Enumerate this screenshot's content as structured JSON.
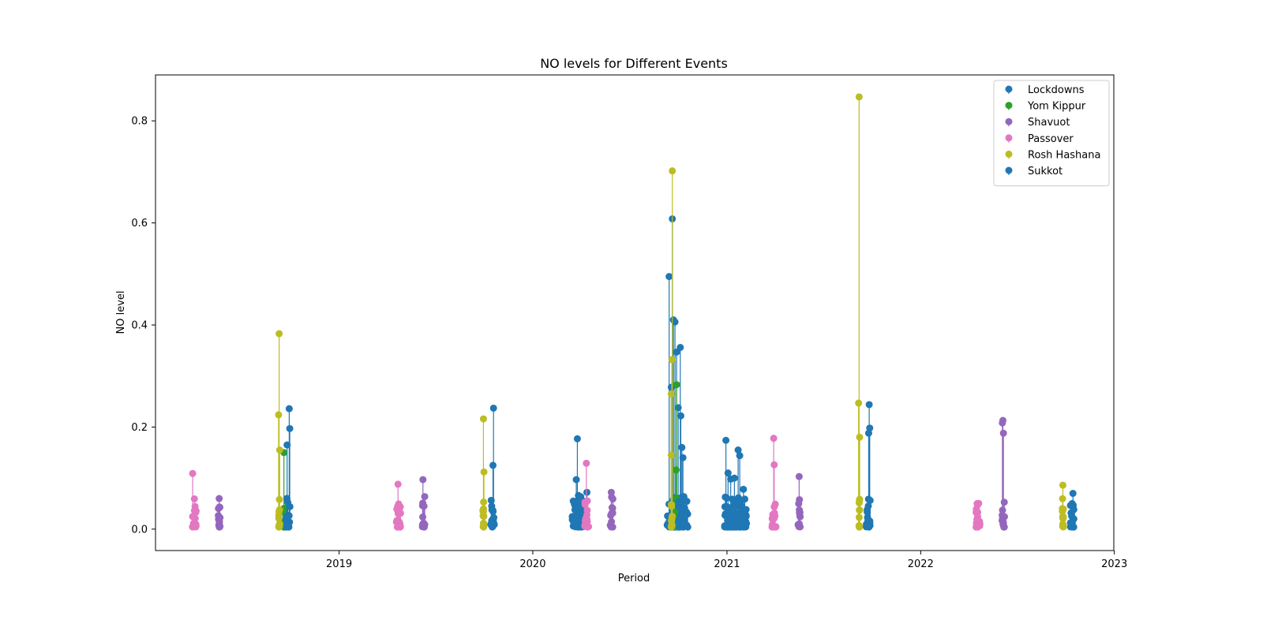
{
  "chart_data": {
    "type": "scatter",
    "title": "NO levels for Different Events",
    "xlabel": "Period",
    "ylabel": "NO level",
    "xlim": [
      "2018-01-20",
      "2022-12-31"
    ],
    "ylim": [
      -0.042,
      0.89
    ],
    "x_ticks": [
      "2019",
      "2020",
      "2021",
      "2022",
      "2023"
    ],
    "y_ticks": [
      "0.0",
      "0.2",
      "0.4",
      "0.6",
      "0.8"
    ],
    "legend_position": "top-right",
    "grid": false,
    "series": [
      {
        "name": "Lockdowns",
        "color": "#1f77b4",
        "clusters": [
          {
            "start": "2020-03-15",
            "end": "2020-04-10",
            "peaks": [
              {
                "x": "2020-03-23",
                "y": 0.097
              },
              {
                "x": "2020-03-25",
                "y": 0.177
              },
              {
                "x": "2020-03-27",
                "y": 0.066
              },
              {
                "x": "2020-04-05",
                "y": 0.055
              },
              {
                "x": "2020-04-12",
                "y": 0.072
              }
            ]
          },
          {
            "start": "2020-09-10",
            "end": "2020-10-20",
            "peaks": [
              {
                "x": "2020-09-14",
                "y": 0.495
              },
              {
                "x": "2020-09-18",
                "y": 0.278
              },
              {
                "x": "2020-09-20",
                "y": 0.608
              },
              {
                "x": "2020-09-22",
                "y": 0.41
              },
              {
                "x": "2020-09-25",
                "y": 0.406
              },
              {
                "x": "2020-09-28",
                "y": 0.347
              },
              {
                "x": "2020-10-01",
                "y": 0.238
              },
              {
                "x": "2020-10-05",
                "y": 0.356
              },
              {
                "x": "2020-10-10",
                "y": 0.14
              }
            ]
          },
          {
            "start": "2020-12-27",
            "end": "2021-02-07",
            "peaks": [
              {
                "x": "2020-12-30",
                "y": 0.174
              },
              {
                "x": "2021-01-03",
                "y": 0.11
              },
              {
                "x": "2021-01-08",
                "y": 0.098
              },
              {
                "x": "2021-01-15",
                "y": 0.1
              },
              {
                "x": "2021-01-22",
                "y": 0.155
              },
              {
                "x": "2021-01-25",
                "y": 0.144
              },
              {
                "x": "2021-02-01",
                "y": 0.078
              }
            ]
          }
        ]
      },
      {
        "name": "Yom Kippur",
        "color": "#2ca02c",
        "clusters": [
          {
            "start": "2018-09-18",
            "end": "2018-09-20",
            "peaks": [
              {
                "x": "2018-09-19",
                "y": 0.15
              }
            ]
          },
          {
            "start": "2020-09-27",
            "end": "2020-09-29",
            "peaks": [
              {
                "x": "2020-09-28",
                "y": 0.283
              },
              {
                "x": "2020-09-27",
                "y": 0.116
              }
            ]
          }
        ]
      },
      {
        "name": "Shavuot",
        "color": "#9467bd",
        "clusters": [
          {
            "start": "2018-05-18",
            "end": "2018-05-22",
            "peaks": [
              {
                "x": "2018-05-20",
                "y": 0.06
              }
            ]
          },
          {
            "start": "2019-06-06",
            "end": "2019-06-12",
            "peaks": [
              {
                "x": "2019-06-08",
                "y": 0.097
              }
            ]
          },
          {
            "start": "2020-05-26",
            "end": "2020-05-31",
            "peaks": [
              {
                "x": "2020-05-28",
                "y": 0.072
              }
            ]
          },
          {
            "start": "2021-05-14",
            "end": "2021-05-19",
            "peaks": [
              {
                "x": "2021-05-17",
                "y": 0.103
              }
            ]
          },
          {
            "start": "2022-06-03",
            "end": "2022-06-08",
            "peaks": [
              {
                "x": "2022-06-04",
                "y": 0.208
              },
              {
                "x": "2022-06-05",
                "y": 0.213
              },
              {
                "x": "2022-06-06",
                "y": 0.188
              }
            ]
          }
        ]
      },
      {
        "name": "Passover",
        "color": "#e377c2",
        "clusters": [
          {
            "start": "2018-03-30",
            "end": "2018-04-07",
            "peaks": [
              {
                "x": "2018-03-31",
                "y": 0.109
              }
            ]
          },
          {
            "start": "2019-04-19",
            "end": "2019-04-27",
            "peaks": [
              {
                "x": "2019-04-22",
                "y": 0.088
              }
            ]
          },
          {
            "start": "2020-04-08",
            "end": "2020-04-16",
            "peaks": [
              {
                "x": "2020-04-11",
                "y": 0.129
              }
            ]
          },
          {
            "start": "2021-03-27",
            "end": "2021-04-04",
            "peaks": [
              {
                "x": "2021-03-30",
                "y": 0.178
              },
              {
                "x": "2021-03-31",
                "y": 0.126
              }
            ]
          },
          {
            "start": "2022-04-15",
            "end": "2022-04-23",
            "peaks": [
              {
                "x": "2022-04-18",
                "y": 0.047
              }
            ]
          }
        ]
      },
      {
        "name": "Rosh Hashana",
        "color": "#bcbd22",
        "clusters": [
          {
            "start": "2018-09-09",
            "end": "2018-09-11",
            "peaks": [
              {
                "x": "2018-09-10",
                "y": 0.383
              },
              {
                "x": "2018-09-09",
                "y": 0.224
              },
              {
                "x": "2018-09-11",
                "y": 0.155
              }
            ]
          },
          {
            "start": "2019-09-29",
            "end": "2019-10-01",
            "peaks": [
              {
                "x": "2019-09-30",
                "y": 0.216
              },
              {
                "x": "2019-10-01",
                "y": 0.112
              }
            ]
          },
          {
            "start": "2020-09-18",
            "end": "2020-09-20",
            "peaks": [
              {
                "x": "2020-09-20",
                "y": 0.702
              },
              {
                "x": "2020-09-19",
                "y": 0.332
              },
              {
                "x": "2020-09-18",
                "y": 0.265
              },
              {
                "x": "2020-09-18",
                "y": 0.145
              }
            ]
          },
          {
            "start": "2021-09-06",
            "end": "2021-09-08",
            "peaks": [
              {
                "x": "2021-09-07",
                "y": 0.847
              },
              {
                "x": "2021-09-06",
                "y": 0.247
              },
              {
                "x": "2021-09-08",
                "y": 0.18
              }
            ]
          },
          {
            "start": "2022-09-25",
            "end": "2022-09-27",
            "peaks": [
              {
                "x": "2022-09-26",
                "y": 0.086
              }
            ]
          }
        ]
      },
      {
        "name": "Sukkot",
        "color": "#1f77b4",
        "clusters": [
          {
            "start": "2018-09-23",
            "end": "2018-10-01",
            "peaks": [
              {
                "x": "2018-09-29",
                "y": 0.236
              },
              {
                "x": "2018-09-30",
                "y": 0.197
              },
              {
                "x": "2018-09-25",
                "y": 0.165
              }
            ]
          },
          {
            "start": "2019-10-13",
            "end": "2019-10-21",
            "peaks": [
              {
                "x": "2019-10-19",
                "y": 0.237
              },
              {
                "x": "2019-10-18",
                "y": 0.125
              }
            ]
          },
          {
            "start": "2020-10-02",
            "end": "2020-10-10",
            "peaks": [
              {
                "x": "2020-10-06",
                "y": 0.222
              },
              {
                "x": "2020-10-08",
                "y": 0.16
              }
            ]
          },
          {
            "start": "2021-09-20",
            "end": "2021-09-28",
            "peaks": [
              {
                "x": "2021-09-26",
                "y": 0.244
              },
              {
                "x": "2021-09-27",
                "y": 0.198
              },
              {
                "x": "2021-09-25",
                "y": 0.188
              }
            ]
          },
          {
            "start": "2022-10-09",
            "end": "2022-10-17",
            "peaks": [
              {
                "x": "2022-10-15",
                "y": 0.07
              }
            ]
          }
        ]
      }
    ]
  }
}
